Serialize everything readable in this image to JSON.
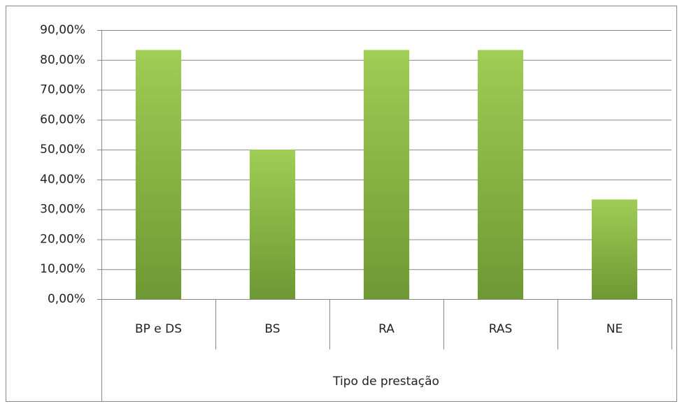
{
  "chart_data": {
    "type": "bar",
    "x_label": "Tipo de prestação",
    "categories": [
      "BP e DS",
      "BS",
      "RA",
      "RAS",
      "NE"
    ],
    "values": [
      83.33,
      50,
      83.33,
      83.33,
      33.33
    ],
    "color": "#8ab844",
    "ylim": [
      0,
      90
    ],
    "yticks": [
      {
        "value": 0,
        "label": "0,00%"
      },
      {
        "value": 10,
        "label": "10,00%"
      },
      {
        "value": 20,
        "label": "20,00%"
      },
      {
        "value": 30,
        "label": "30,00%"
      },
      {
        "value": 40,
        "label": "40,00%"
      },
      {
        "value": 50,
        "label": "50,00%"
      },
      {
        "value": 60,
        "label": "60,00%"
      },
      {
        "value": 70,
        "label": "70,00%"
      },
      {
        "value": 80,
        "label": "80,00%"
      },
      {
        "value": 90,
        "label": "90,00%"
      }
    ],
    "grid": true
  }
}
